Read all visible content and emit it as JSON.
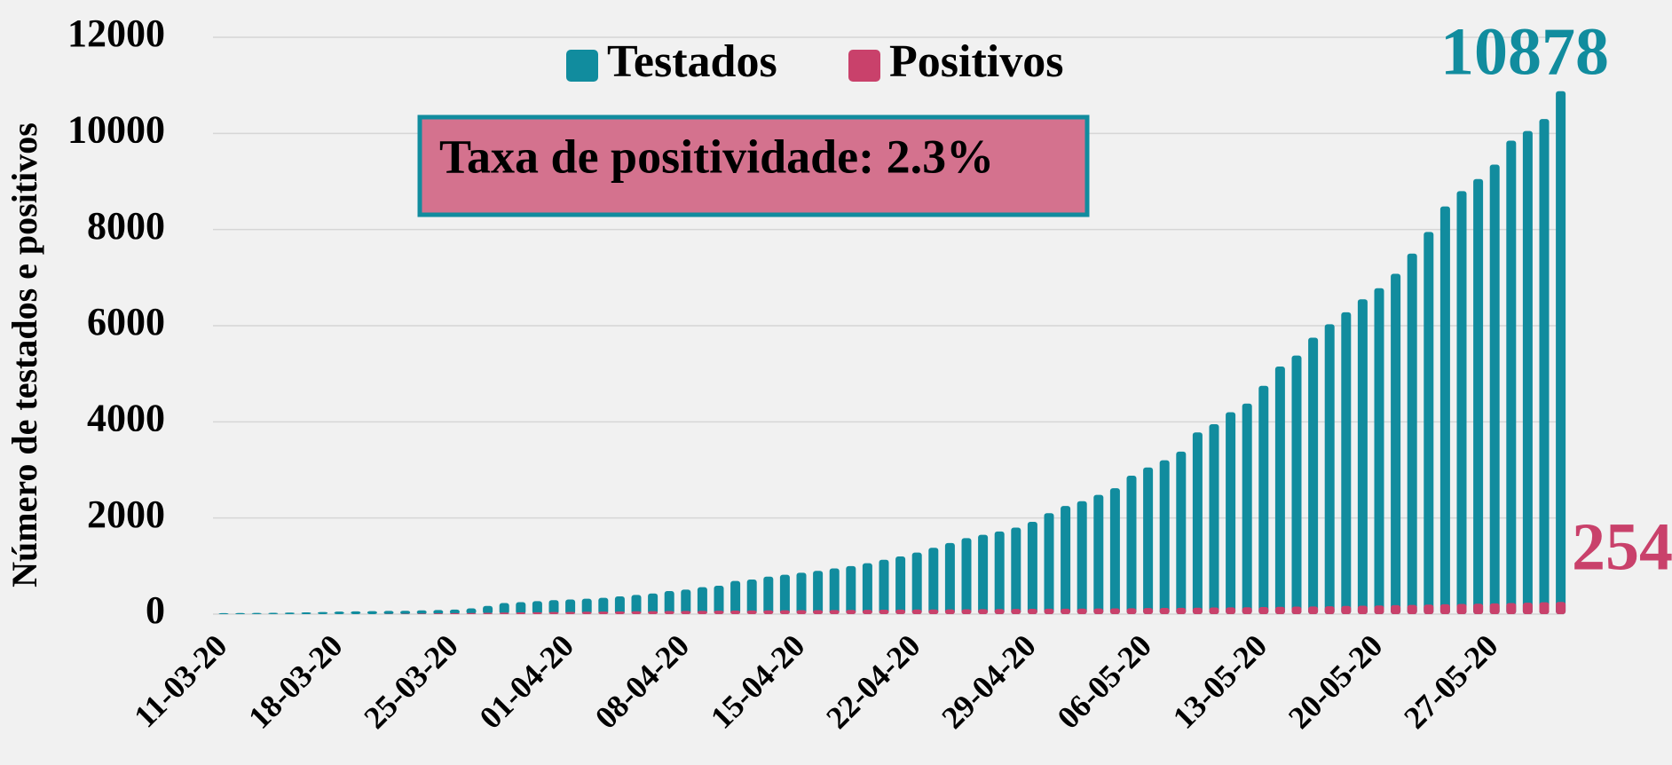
{
  "chart_data": {
    "type": "bar",
    "y_label": "Número de testados e positivos",
    "annotations": [
      "Taxa de positividade: 2.3%"
    ],
    "categories": [
      "11-03-20",
      null,
      null,
      null,
      null,
      null,
      null,
      "18-03-20",
      null,
      null,
      null,
      null,
      null,
      null,
      "25-03-20",
      null,
      null,
      null,
      null,
      null,
      null,
      "01-04-20",
      null,
      null,
      null,
      null,
      null,
      null,
      "08-04-20",
      null,
      null,
      null,
      null,
      null,
      null,
      "15-04-20",
      null,
      null,
      null,
      null,
      null,
      null,
      "22-04-20",
      null,
      null,
      null,
      null,
      null,
      null,
      "29-04-20",
      null,
      null,
      null,
      null,
      null,
      null,
      "06-05-20",
      null,
      null,
      null,
      null,
      null,
      null,
      "13-05-20",
      null,
      null,
      null,
      null,
      null,
      null,
      "20-05-20",
      null,
      null,
      null,
      null,
      null,
      null,
      "27-05-20",
      null,
      null,
      null,
      null
    ],
    "series": [
      {
        "name": "Testados",
        "color": "#118c9e",
        "values": [
          20,
          22,
          25,
          28,
          32,
          38,
          45,
          52,
          58,
          62,
          66,
          70,
          78,
          85,
          95,
          120,
          170,
          230,
          250,
          270,
          290,
          305,
          320,
          340,
          370,
          400,
          430,
          480,
          510,
          560,
          590,
          690,
          720,
          780,
          820,
          860,
          900,
          950,
          1000,
          1060,
          1130,
          1200,
          1280,
          1380,
          1480,
          1580,
          1650,
          1720,
          1800,
          1920,
          2100,
          2250,
          2350,
          2480,
          2620,
          2880,
          3050,
          3200,
          3380,
          3780,
          3950,
          4200,
          4380,
          4750,
          5150,
          5380,
          5750,
          6030,
          6280,
          6550,
          6780,
          7080,
          7500,
          7950,
          8480,
          8800,
          9050,
          9350,
          9850,
          10050,
          10300,
          10878
        ]
      },
      {
        "name": "Positivos",
        "color": "#c9416b",
        "values": [
          0,
          0,
          0,
          0,
          0,
          0,
          0,
          0,
          0,
          0,
          5,
          8,
          12,
          16,
          20,
          24,
          28,
          32,
          36,
          40,
          44,
          47,
          50,
          53,
          56,
          59,
          62,
          65,
          68,
          70,
          72,
          74,
          76,
          78,
          80,
          82,
          84,
          86,
          88,
          90,
          92,
          94,
          96,
          98,
          100,
          102,
          104,
          106,
          108,
          110,
          112,
          114,
          116,
          118,
          120,
          123,
          126,
          129,
          132,
          135,
          138,
          141,
          144,
          148,
          152,
          156,
          160,
          165,
          170,
          175,
          180,
          186,
          192,
          198,
          205,
          212,
          218,
          224,
          230,
          238,
          246,
          254
        ]
      }
    ],
    "ylim": [
      0,
      12000
    ],
    "yticks": [
      0,
      2000,
      4000,
      6000,
      8000,
      10000,
      12000
    ],
    "grid": true
  }
}
